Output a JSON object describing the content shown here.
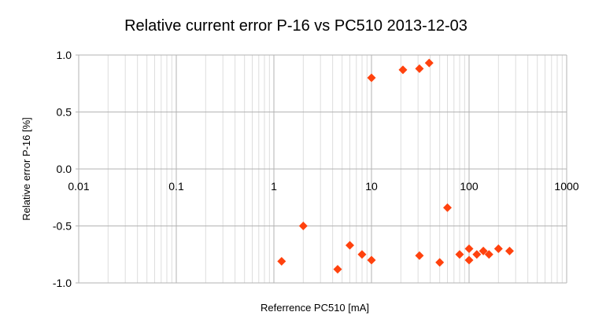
{
  "chart_data": {
    "type": "scatter",
    "title": "Relative current error P-16 vs PC510 2013-12-03",
    "xlabel": "Referrence PC510 [mA]",
    "ylabel": "Relative error P-16 [%]",
    "x_scale": "log",
    "xlim": [
      0.01,
      1000
    ],
    "ylim": [
      -1.0,
      1.0
    ],
    "x_ticks": [
      0.01,
      0.1,
      1,
      10,
      100,
      1000
    ],
    "x_tick_labels": [
      "0.01",
      "0.1",
      "1",
      "10",
      "100",
      "1000"
    ],
    "y_ticks": [
      1.0,
      0.5,
      0.0,
      -0.5,
      -1.0
    ],
    "y_tick_labels": [
      "1.0",
      "0.5",
      "0.0",
      "-0.5",
      "-1.0"
    ],
    "grid": true,
    "legend": "none",
    "marker": "diamond",
    "marker_color": "#ff420e",
    "series": [
      {
        "points": [
          {
            "x": 1.2,
            "y": -0.81
          },
          {
            "x": 2.0,
            "y": -0.5
          },
          {
            "x": 4.5,
            "y": -0.88
          },
          {
            "x": 6.0,
            "y": -0.67
          },
          {
            "x": 8.0,
            "y": -0.75
          },
          {
            "x": 10,
            "y": -0.8
          },
          {
            "x": 10,
            "y": 0.8
          },
          {
            "x": 21,
            "y": 0.87
          },
          {
            "x": 31,
            "y": 0.88
          },
          {
            "x": 31,
            "y": -0.76
          },
          {
            "x": 39,
            "y": 0.93
          },
          {
            "x": 50,
            "y": -0.82
          },
          {
            "x": 60,
            "y": -0.34
          },
          {
            "x": 80,
            "y": -0.75
          },
          {
            "x": 100,
            "y": -0.7
          },
          {
            "x": 100,
            "y": -0.8
          },
          {
            "x": 120,
            "y": -0.75
          },
          {
            "x": 140,
            "y": -0.72
          },
          {
            "x": 160,
            "y": -0.75
          },
          {
            "x": 200,
            "y": -0.7
          },
          {
            "x": 260,
            "y": -0.72
          }
        ]
      }
    ]
  }
}
